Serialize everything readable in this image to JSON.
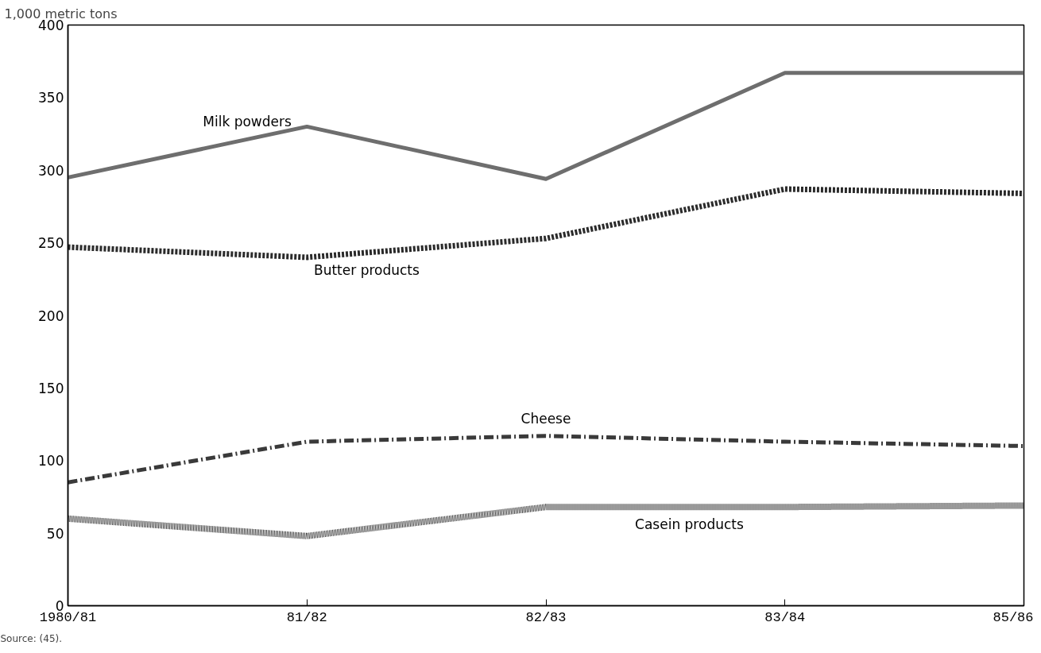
{
  "chart_data": {
    "type": "line",
    "ylabel": "1,000 metric tons",
    "categories": [
      "1980/81",
      "81/82",
      "82/83",
      "83/84",
      "85/86"
    ],
    "ylim": [
      0,
      400
    ],
    "yticks": [
      0,
      50,
      100,
      150,
      200,
      250,
      300,
      350,
      400
    ],
    "grid": false,
    "series": [
      {
        "name": "Milk powders",
        "color": "#6e6e6e",
        "line_style": "solid",
        "values": [
          295,
          330,
          294,
          367,
          367
        ]
      },
      {
        "name": "Butter products",
        "color": "#2a2a2a",
        "line_style": "dashed",
        "values": [
          247,
          240,
          253,
          287,
          284
        ]
      },
      {
        "name": "Cheese",
        "color": "#3a3a3a",
        "line_style": "dashdot",
        "values": [
          85,
          113,
          117,
          113,
          110
        ]
      },
      {
        "name": "Casein products",
        "color": "#333333",
        "line_style": "dotted",
        "values": [
          60,
          48,
          68,
          68,
          69
        ]
      }
    ],
    "annotations": [
      "Source: (45)."
    ]
  }
}
